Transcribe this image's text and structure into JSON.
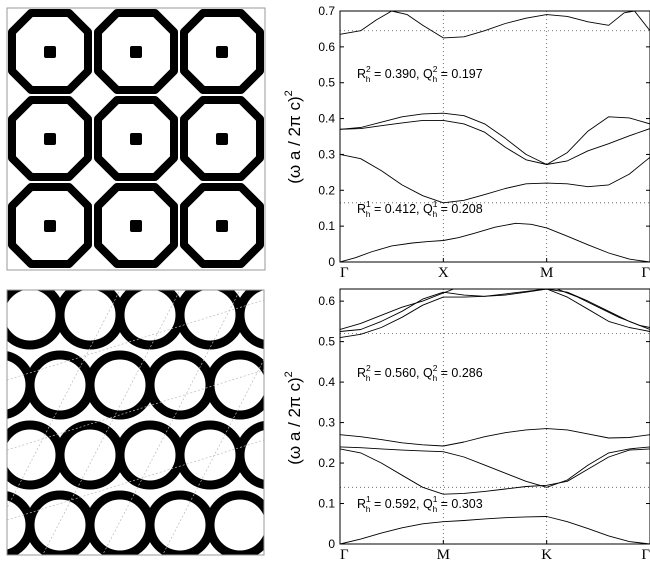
{
  "chart_data": [
    {
      "type": "line",
      "lattice": "square",
      "ylabel_main": "(ω a / 2π c)",
      "ylabel_power": "2",
      "ylim": [
        0,
        0.7
      ],
      "yticks": [
        0,
        0.1,
        0.2,
        0.3,
        0.4,
        0.5,
        0.6,
        0.7
      ],
      "ytick_labels": [
        "0",
        "0.1",
        "0.2",
        "0.3",
        "0.4",
        "0.5",
        "0.6",
        "0.7"
      ],
      "kpoints": [
        "Γ",
        "X",
        "M",
        "Γ"
      ],
      "grid": "dotted",
      "gap_edges": [
        0.165,
        0.645
      ],
      "annotations": [
        {
          "R_sup": "2",
          "R_val": " = 0.390, ",
          "Q_sup": "2",
          "Q_val": " = 0.197"
        },
        {
          "R_sup": "1",
          "R_val": " = 0.412, ",
          "Q_sup": "1",
          "Q_val": " = 0.208"
        }
      ],
      "series": [
        {
          "x": [
            0,
            0.15,
            0.3,
            0.5,
            0.7,
            0.85,
            1,
            1.15,
            1.3,
            1.5,
            1.7,
            1.85,
            2,
            2.2,
            2.4,
            2.6,
            2.8,
            3
          ],
          "y": [
            0,
            0.012,
            0.028,
            0.045,
            0.053,
            0.057,
            0.06,
            0.068,
            0.08,
            0.097,
            0.108,
            0.105,
            0.095,
            0.072,
            0.048,
            0.025,
            0.008,
            0
          ]
        },
        {
          "x": [
            0,
            0.2,
            0.4,
            0.6,
            0.8,
            1,
            1.2,
            1.4,
            1.6,
            1.8,
            2,
            2.2,
            2.4,
            2.6,
            2.8,
            3
          ],
          "y": [
            0.3,
            0.288,
            0.255,
            0.215,
            0.185,
            0.165,
            0.172,
            0.188,
            0.205,
            0.218,
            0.22,
            0.218,
            0.21,
            0.215,
            0.245,
            0.292
          ]
        },
        {
          "x": [
            0,
            0.2,
            0.4,
            0.6,
            0.8,
            1,
            1.2,
            1.4,
            1.6,
            1.8,
            2,
            2.2,
            2.4,
            2.6,
            2.8,
            3
          ],
          "y": [
            0.37,
            0.372,
            0.38,
            0.388,
            0.395,
            0.395,
            0.385,
            0.362,
            0.32,
            0.285,
            0.272,
            0.282,
            0.31,
            0.33,
            0.352,
            0.372
          ]
        },
        {
          "x": [
            0,
            0.2,
            0.4,
            0.6,
            0.8,
            1,
            1.2,
            1.4,
            1.6,
            1.8,
            2,
            2.2,
            2.4,
            2.6,
            2.8,
            3
          ],
          "y": [
            0.37,
            0.375,
            0.39,
            0.405,
            0.413,
            0.415,
            0.408,
            0.385,
            0.345,
            0.3,
            0.272,
            0.305,
            0.365,
            0.405,
            0.402,
            0.385
          ]
        },
        {
          "x": [
            0,
            0.2,
            0.35,
            0.5,
            0.65,
            0.8,
            1,
            1.2,
            1.4,
            1.6,
            1.8,
            2,
            2.2,
            2.4,
            2.6,
            2.75,
            2.85,
            3
          ],
          "y": [
            0.635,
            0.645,
            0.675,
            0.7,
            0.69,
            0.66,
            0.625,
            0.628,
            0.645,
            0.665,
            0.68,
            0.69,
            0.685,
            0.67,
            0.66,
            0.695,
            0.7,
            0.645
          ]
        }
      ]
    },
    {
      "type": "line",
      "lattice": "hexagonal",
      "ylabel_main": "(ω a / 2π c)",
      "ylabel_power": "2",
      "ylim": [
        0,
        0.63
      ],
      "yticks": [
        0,
        0.1,
        0.2,
        0.3,
        0.4,
        0.5,
        0.6
      ],
      "ytick_labels": [
        "0",
        "0.1",
        "0.2",
        "0.3",
        "0.4",
        "0.5",
        "0.6"
      ],
      "kpoints": [
        "Γ",
        "M",
        "K",
        "Γ"
      ],
      "grid": "dotted",
      "gap_edges": [
        0.14,
        0.52
      ],
      "annotations": [
        {
          "R_sup": "2",
          "R_val": " = 0.560, ",
          "Q_sup": "2",
          "Q_val": " = 0.286"
        },
        {
          "R_sup": "1",
          "R_val": " = 0.592, ",
          "Q_sup": "1",
          "Q_val": " = 0.303"
        }
      ],
      "series": [
        {
          "x": [
            0,
            0.2,
            0.4,
            0.6,
            0.8,
            1,
            1.2,
            1.4,
            1.6,
            1.8,
            2,
            2.2,
            2.4,
            2.6,
            2.8,
            3
          ],
          "y": [
            0,
            0.012,
            0.027,
            0.04,
            0.05,
            0.055,
            0.058,
            0.062,
            0.065,
            0.067,
            0.068,
            0.055,
            0.038,
            0.02,
            0.006,
            0
          ]
        },
        {
          "x": [
            0,
            0.2,
            0.4,
            0.6,
            0.8,
            1,
            1.2,
            1.4,
            1.6,
            1.8,
            2,
            2.2,
            2.4,
            2.6,
            2.8,
            3
          ],
          "y": [
            0.235,
            0.225,
            0.2,
            0.17,
            0.14,
            0.123,
            0.125,
            0.13,
            0.136,
            0.142,
            0.145,
            0.155,
            0.185,
            0.215,
            0.232,
            0.235
          ]
        },
        {
          "x": [
            0,
            0.2,
            0.4,
            0.6,
            0.8,
            1,
            1.2,
            1.4,
            1.6,
            1.8,
            2,
            2.2,
            2.4,
            2.6,
            2.8,
            3
          ],
          "y": [
            0.24,
            0.238,
            0.235,
            0.232,
            0.23,
            0.228,
            0.215,
            0.195,
            0.175,
            0.155,
            0.14,
            0.158,
            0.195,
            0.225,
            0.235,
            0.24
          ]
        },
        {
          "x": [
            0,
            0.2,
            0.4,
            0.6,
            0.8,
            1,
            1.2,
            1.4,
            1.6,
            1.8,
            2,
            2.2,
            2.4,
            2.6,
            2.8,
            3
          ],
          "y": [
            0.27,
            0.265,
            0.258,
            0.25,
            0.245,
            0.242,
            0.252,
            0.265,
            0.275,
            0.282,
            0.285,
            0.282,
            0.272,
            0.262,
            0.263,
            0.27
          ]
        },
        {
          "x": [
            0,
            0.2,
            0.4,
            0.6,
            0.8,
            1,
            1.2,
            1.4,
            1.6,
            1.8,
            2,
            2.2,
            2.4,
            2.6,
            2.8,
            3
          ],
          "y": [
            0.51,
            0.518,
            0.535,
            0.56,
            0.59,
            0.61,
            0.61,
            0.612,
            0.618,
            0.624,
            0.63,
            0.61,
            0.58,
            0.55,
            0.535,
            0.525
          ]
        },
        {
          "x": [
            0,
            0.2,
            0.4,
            0.6,
            0.8,
            1,
            1.2,
            1.4,
            1.6,
            1.8,
            2,
            2.2,
            2.4,
            2.6,
            2.8,
            3
          ],
          "y": [
            0.525,
            0.53,
            0.55,
            0.575,
            0.605,
            0.622,
            0.615,
            0.612,
            0.615,
            0.622,
            0.63,
            0.622,
            0.6,
            0.575,
            0.55,
            0.53
          ]
        },
        {
          "x": [
            0,
            0.2,
            0.4,
            0.6,
            0.8,
            1,
            1.1,
            1.2
          ],
          "y": [
            0.53,
            0.545,
            0.565,
            0.585,
            0.6,
            0.62,
            0.63,
            0.63
          ]
        },
        {
          "x": [
            2.1,
            2.3,
            2.5,
            2.7,
            2.9,
            3
          ],
          "y": [
            0.63,
            0.61,
            0.585,
            0.56,
            0.54,
            0.535
          ]
        }
      ]
    }
  ]
}
